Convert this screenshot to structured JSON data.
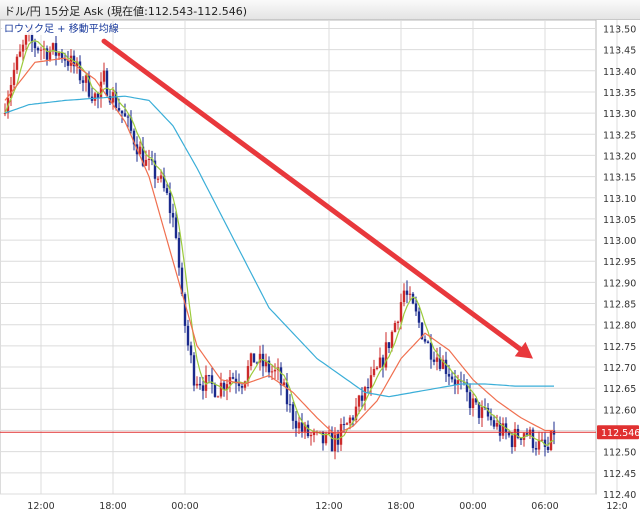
{
  "window": {
    "title": "ドル/円 15分足 Ask (現在値:112.543-112.546)"
  },
  "legend": {
    "label": "ロウソク足 + 移動平均線"
  },
  "colors": {
    "candle_up": "#cc2a2a",
    "candle_down": "#1a2a8c",
    "ma_short": "#9ccb3c",
    "ma_mid": "#f07050",
    "ma_long": "#3aaed8",
    "price_line": "#e03030",
    "arrow": "#e8383c",
    "grid": "#dcdcdc"
  },
  "chart_data": {
    "type": "candlestick",
    "title": "ドル/円 15分足 Ask",
    "current_price": {
      "value": 112.546,
      "label": "112.546"
    },
    "ylim": [
      112.4,
      113.52
    ],
    "y_ticks": [
      "113.50",
      "113.45",
      "113.40",
      "113.35",
      "113.30",
      "113.25",
      "113.20",
      "113.15",
      "113.10",
      "113.05",
      "113.00",
      "112.95",
      "112.90",
      "112.85",
      "112.80",
      "112.75",
      "112.70",
      "112.65",
      "112.60",
      "112.55",
      "112.50",
      "112.45",
      "112.40"
    ],
    "x_ticks": [
      "12:00",
      "18:00",
      "00:00",
      "12:00",
      "18:00",
      "00:00",
      "06:00",
      "12:0"
    ],
    "x_tick_index": [
      12,
      36,
      60,
      108,
      132,
      156,
      180,
      204
    ],
    "n_bars": 184,
    "anchors": [
      [
        0,
        113.3
      ],
      [
        4,
        113.4
      ],
      [
        8,
        113.47
      ],
      [
        14,
        113.45
      ],
      [
        20,
        113.44
      ],
      [
        24,
        113.41
      ],
      [
        28,
        113.37
      ],
      [
        32,
        113.33
      ],
      [
        34,
        113.38
      ],
      [
        36,
        113.35
      ],
      [
        40,
        113.3
      ],
      [
        44,
        113.24
      ],
      [
        48,
        113.18
      ],
      [
        52,
        113.15
      ],
      [
        55,
        113.1
      ],
      [
        58,
        113.02
      ],
      [
        60,
        112.85
      ],
      [
        62,
        112.75
      ],
      [
        64,
        112.68
      ],
      [
        68,
        112.66
      ],
      [
        72,
        112.65
      ],
      [
        76,
        112.68
      ],
      [
        80,
        112.67
      ],
      [
        84,
        112.72
      ],
      [
        88,
        112.7
      ],
      [
        92,
        112.68
      ],
      [
        96,
        112.6
      ],
      [
        100,
        112.55
      ],
      [
        104,
        112.53
      ],
      [
        110,
        112.52
      ],
      [
        114,
        112.55
      ],
      [
        118,
        112.6
      ],
      [
        122,
        112.65
      ],
      [
        126,
        112.7
      ],
      [
        130,
        112.78
      ],
      [
        134,
        112.88
      ],
      [
        138,
        112.82
      ],
      [
        142,
        112.75
      ],
      [
        146,
        112.72
      ],
      [
        150,
        112.68
      ],
      [
        154,
        112.64
      ],
      [
        158,
        112.6
      ],
      [
        162,
        112.58
      ],
      [
        166,
        112.55
      ],
      [
        170,
        112.53
      ],
      [
        174,
        112.55
      ],
      [
        178,
        112.52
      ],
      [
        182,
        112.5
      ],
      [
        184,
        112.55
      ]
    ],
    "ma_long_anchors": [
      [
        0,
        113.3
      ],
      [
        8,
        113.32
      ],
      [
        20,
        113.33
      ],
      [
        40,
        113.34
      ],
      [
        48,
        113.33
      ],
      [
        56,
        113.27
      ],
      [
        64,
        113.17
      ],
      [
        72,
        113.06
      ],
      [
        80,
        112.95
      ],
      [
        88,
        112.84
      ],
      [
        96,
        112.78
      ],
      [
        104,
        112.72
      ],
      [
        112,
        112.68
      ],
      [
        120,
        112.64
      ],
      [
        128,
        112.63
      ],
      [
        136,
        112.64
      ],
      [
        144,
        112.65
      ],
      [
        152,
        112.66
      ],
      [
        160,
        112.66
      ],
      [
        170,
        112.655
      ],
      [
        184,
        112.655
      ]
    ],
    "ma_mid_anchors": [
      [
        0,
        113.33
      ],
      [
        10,
        113.42
      ],
      [
        20,
        113.43
      ],
      [
        30,
        113.38
      ],
      [
        40,
        113.28
      ],
      [
        48,
        113.15
      ],
      [
        56,
        112.95
      ],
      [
        64,
        112.75
      ],
      [
        72,
        112.67
      ],
      [
        80,
        112.66
      ],
      [
        88,
        112.68
      ],
      [
        96,
        112.64
      ],
      [
        104,
        112.58
      ],
      [
        110,
        112.54
      ],
      [
        116,
        112.56
      ],
      [
        124,
        112.62
      ],
      [
        132,
        112.72
      ],
      [
        140,
        112.78
      ],
      [
        148,
        112.74
      ],
      [
        156,
        112.67
      ],
      [
        164,
        112.62
      ],
      [
        172,
        112.58
      ],
      [
        180,
        112.55
      ],
      [
        184,
        112.55
      ]
    ],
    "annotation": {
      "type": "arrow",
      "direction": "down",
      "from": [
        33,
        113.47
      ],
      "to": [
        176,
        112.72
      ]
    }
  }
}
